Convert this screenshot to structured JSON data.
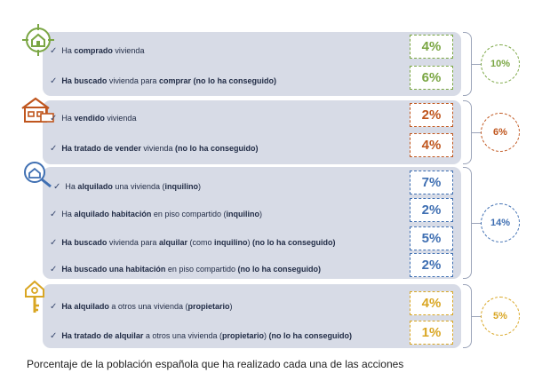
{
  "colors": {
    "buy": "#7aa643",
    "sell": "#c0561e",
    "rent": "#3f6fb2",
    "owner": "#d9a623",
    "group_bg": "#d7dbe6",
    "text": "#1f2a44"
  },
  "groups": [
    {
      "icon": "house-target-icon",
      "total": "10%",
      "rows": [
        {
          "parts": [
            [
              "Ha ",
              false
            ],
            [
              "comprado",
              true
            ],
            [
              " vivienda",
              false
            ]
          ],
          "pct": "4%"
        },
        {
          "parts": [
            [
              "Ha buscado",
              true
            ],
            [
              " vivienda para ",
              false
            ],
            [
              "comprar (no lo ha conseguido)",
              true
            ]
          ],
          "pct": "6%"
        }
      ]
    },
    {
      "icon": "house-sold-icon",
      "total": "6%",
      "rows": [
        {
          "parts": [
            [
              "Ha ",
              false
            ],
            [
              "vendido",
              true
            ],
            [
              " vivienda",
              false
            ]
          ],
          "pct": "2%"
        },
        {
          "parts": [
            [
              "Ha tratado de vender",
              true
            ],
            [
              " vivienda ",
              false
            ],
            [
              "(no lo ha conseguido)",
              true
            ]
          ],
          "pct": "4%"
        }
      ]
    },
    {
      "icon": "house-search-icon",
      "total": "14%",
      "rows": [
        {
          "parts": [
            [
              "Ha ",
              false
            ],
            [
              "alquilado",
              true
            ],
            [
              " una vivienda (",
              false
            ],
            [
              "inquilino",
              true
            ],
            [
              ")",
              false
            ]
          ],
          "pct": "7%"
        },
        {
          "parts": [
            [
              "Ha ",
              false
            ],
            [
              "alquilado habitación",
              true
            ],
            [
              " en piso compartido (",
              false
            ],
            [
              "inquilino",
              true
            ],
            [
              ")",
              false
            ]
          ],
          "pct": "2%"
        },
        {
          "parts": [
            [
              "Ha buscado",
              true
            ],
            [
              " vivienda para ",
              false
            ],
            [
              "alquilar",
              true
            ],
            [
              " (como ",
              false
            ],
            [
              "inquilino",
              true
            ],
            [
              ") ",
              false
            ],
            [
              "(no lo ha conseguido)",
              true
            ]
          ],
          "pct": "5%"
        },
        {
          "parts": [
            [
              "Ha buscado una habitación",
              true
            ],
            [
              " en piso compartido ",
              false
            ],
            [
              "(no lo ha conseguido)",
              true
            ]
          ],
          "pct": "2%"
        }
      ]
    },
    {
      "icon": "house-key-icon",
      "total": "5%",
      "rows": [
        {
          "parts": [
            [
              "Ha alquilado",
              true
            ],
            [
              " a otros una vivienda (",
              false
            ],
            [
              "propietario",
              true
            ],
            [
              ")",
              false
            ]
          ],
          "pct": "4%"
        },
        {
          "parts": [
            [
              "Ha tratado de alquilar",
              true
            ],
            [
              " a otros una vivienda (",
              false
            ],
            [
              "propietario",
              true
            ],
            [
              ") ",
              false
            ],
            [
              "(no lo ha conseguido)",
              true
            ]
          ],
          "pct": "1%"
        }
      ]
    }
  ],
  "caption": "Porcentaje de la población española que ha realizado cada una de las acciones"
}
